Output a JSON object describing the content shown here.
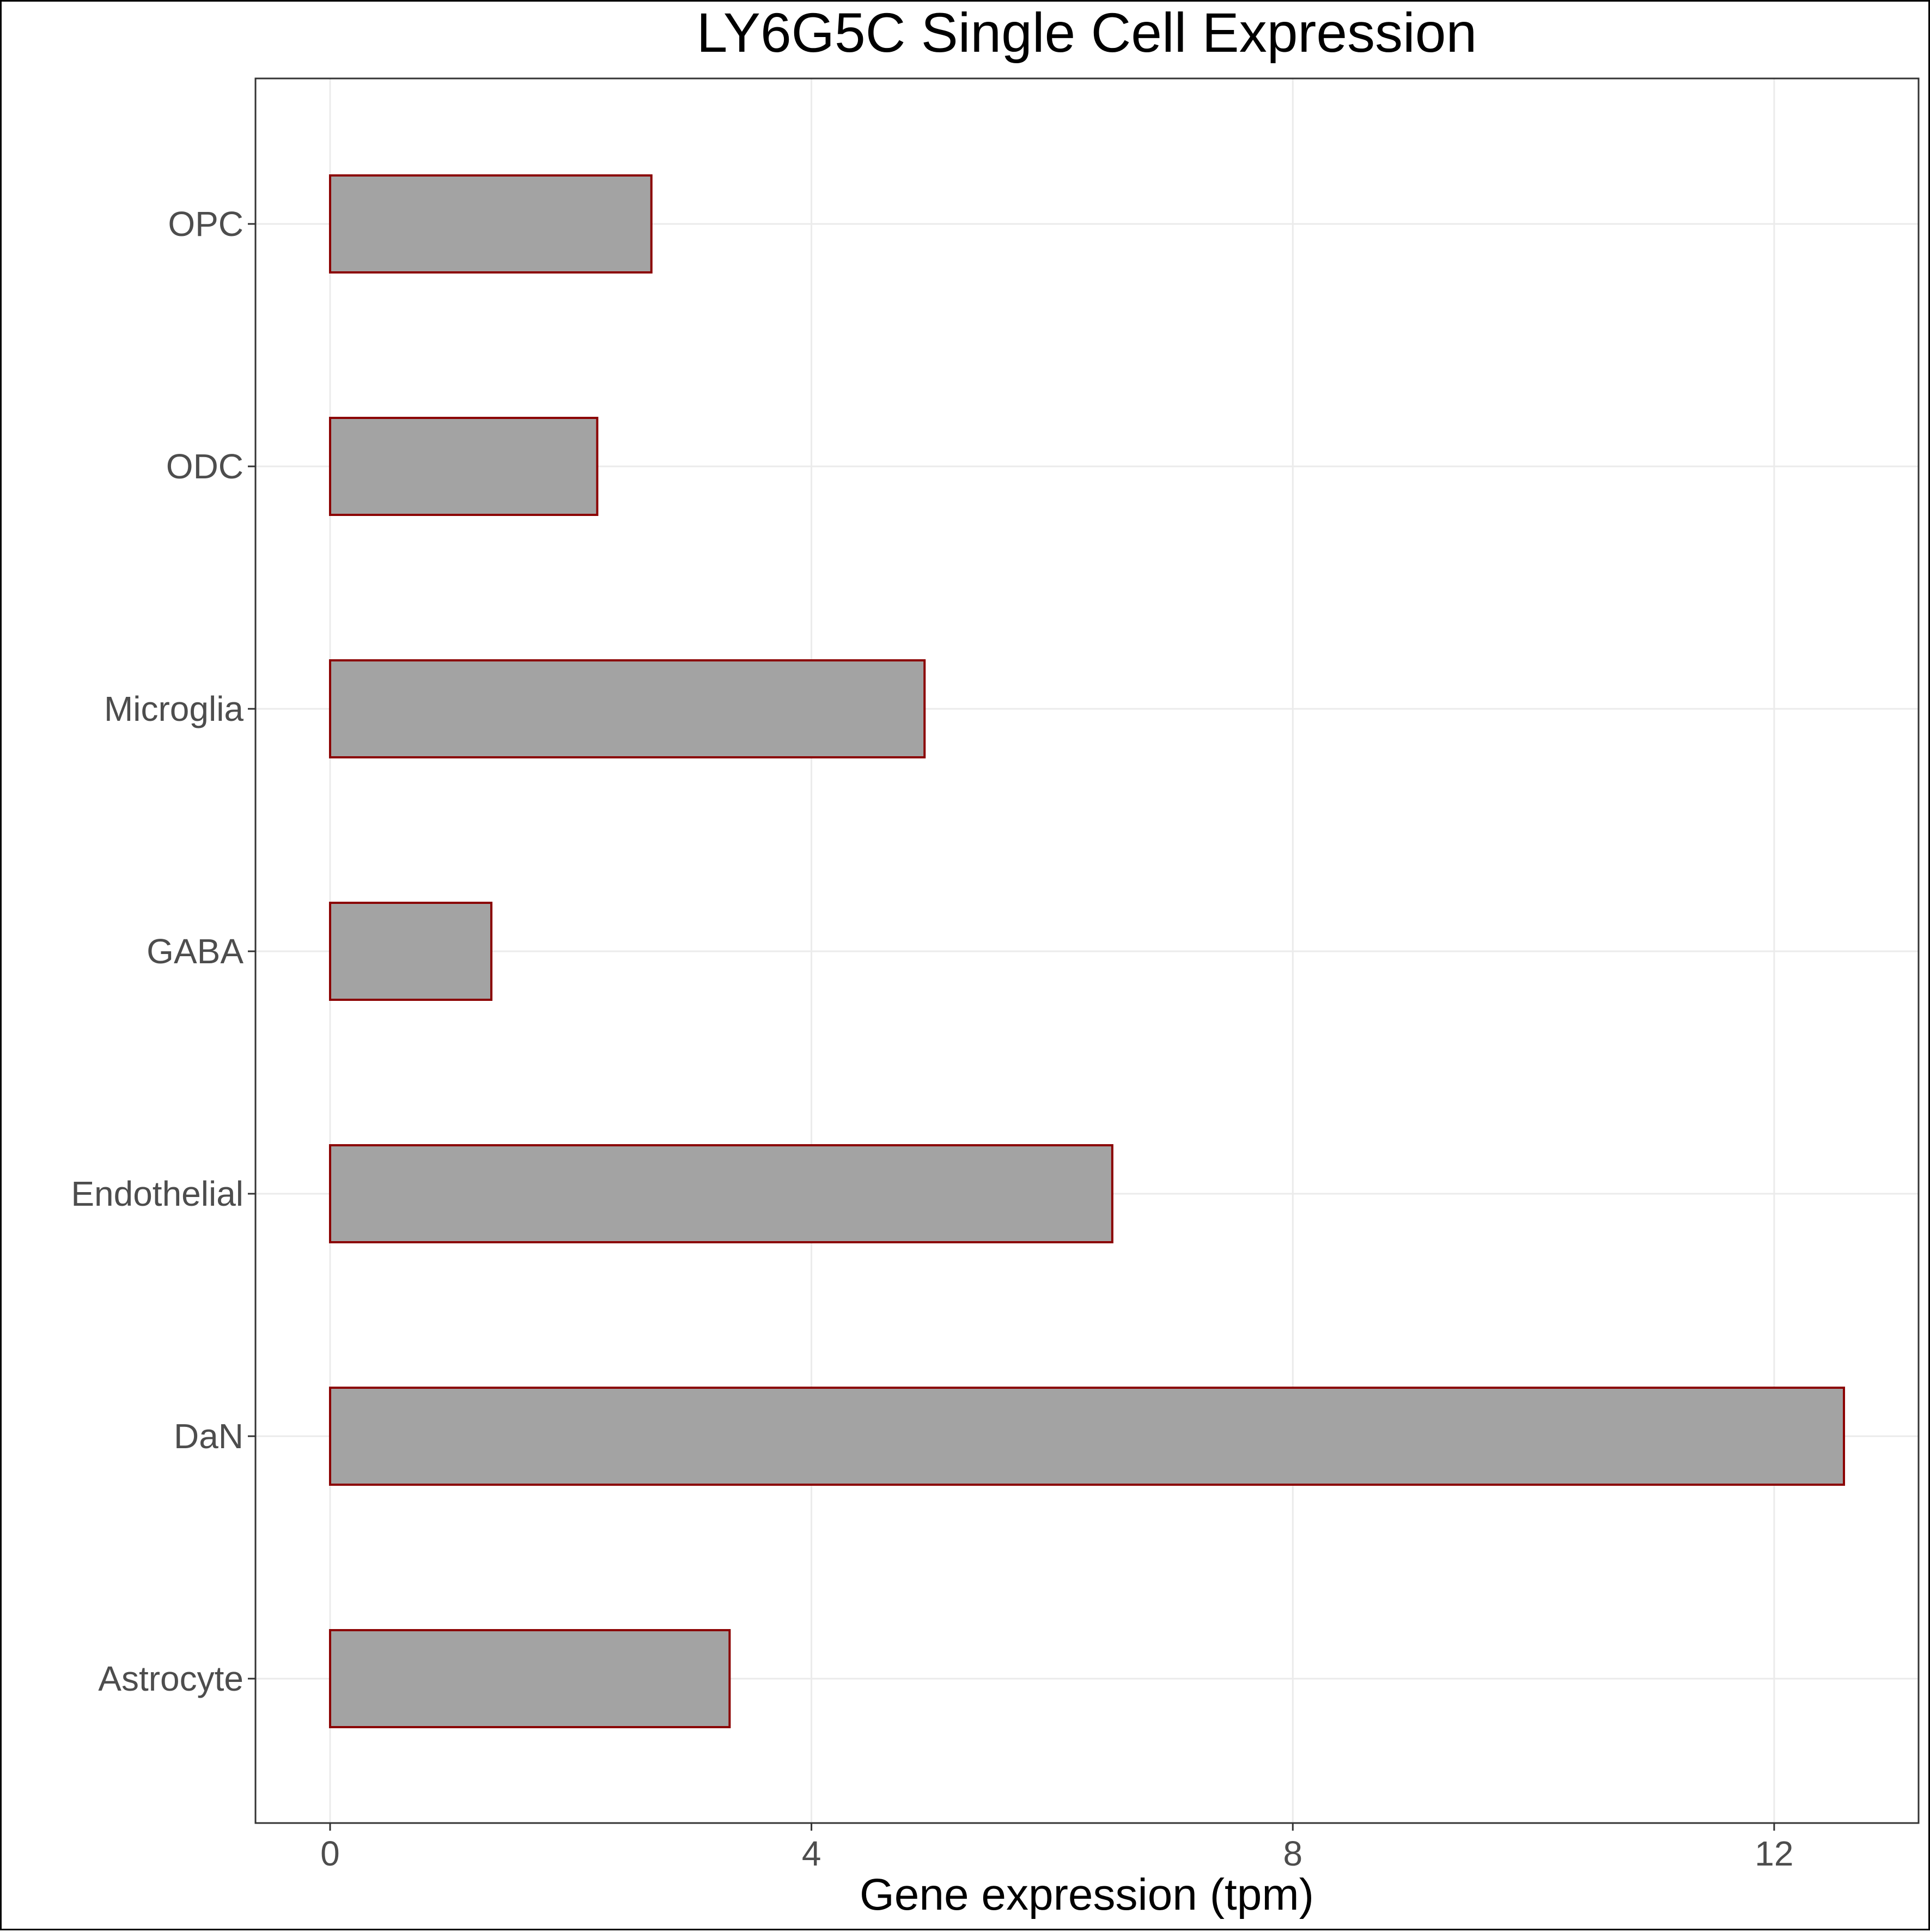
{
  "chart_data": {
    "type": "bar",
    "orientation": "horizontal",
    "title": "LY6G5C Single Cell Expression",
    "xlabel": "Gene expression (tpm)",
    "ylabel": "",
    "categories": [
      "Astrocyte",
      "DaN",
      "Endothelial",
      "GABA",
      "Microglia",
      "ODC",
      "OPC"
    ],
    "values": [
      3.32,
      12.58,
      6.5,
      1.34,
      4.94,
      2.22,
      2.67
    ],
    "xlim": [
      -0.62,
      13.2
    ],
    "xticks": [
      0,
      4,
      8,
      12
    ],
    "xtick_labels": [
      "0",
      "4",
      "8",
      "12"
    ],
    "grid": true,
    "legend": "none",
    "colors": {
      "bar_fill": "#a3a3a3",
      "bar_stroke": "#8b0000",
      "grid": "#ebebeb",
      "panel_border": "#333333",
      "tick_text": "#4d4d4d",
      "title_text": "#000000"
    }
  }
}
